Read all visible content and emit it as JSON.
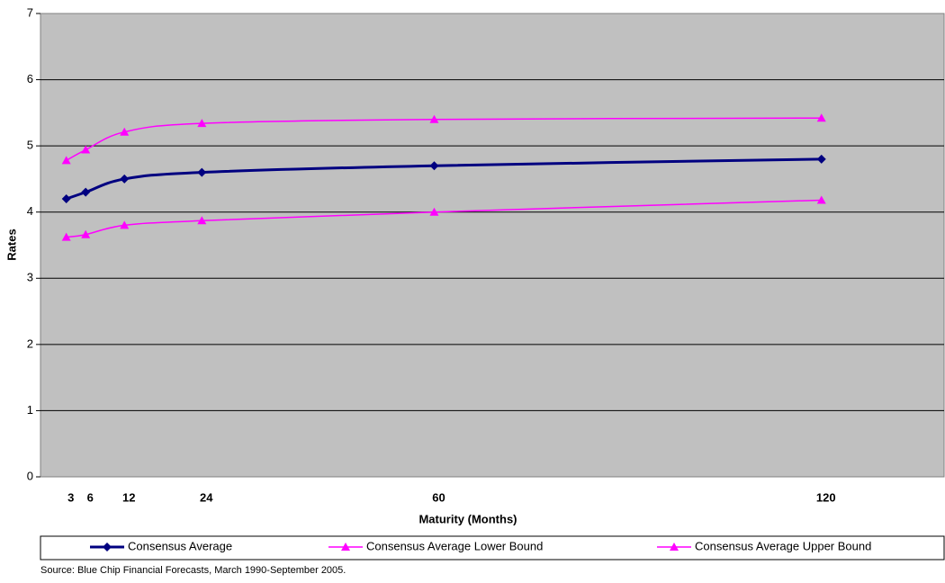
{
  "chart_data": {
    "type": "line",
    "x_label": "Maturity (Months)",
    "y_label": "Rates",
    "x": [
      3,
      6,
      12,
      24,
      60,
      120
    ],
    "series": [
      {
        "name": "Consensus Average",
        "color": "#000080",
        "marker": "diamond",
        "values": [
          4.2,
          4.3,
          4.5,
          4.6,
          4.7,
          4.8
        ]
      },
      {
        "name": "Consensus Average Lower Bound",
        "color": "#ff00ff",
        "marker": "triangle",
        "values": [
          3.62,
          3.66,
          3.8,
          3.87,
          4.0,
          4.18
        ]
      },
      {
        "name": "Consensus Average Upper Bound",
        "color": "#ff00ff",
        "marker": "triangle",
        "values": [
          4.78,
          4.94,
          5.21,
          5.34,
          5.4,
          5.42
        ]
      }
    ],
    "xlim": [
      -1,
      139
    ],
    "xticks": [
      3,
      6,
      12,
      24,
      60,
      120
    ],
    "ylim": [
      0,
      7
    ],
    "yticks": [
      0,
      1,
      2,
      3,
      4,
      5,
      6,
      7
    ],
    "grid": true,
    "smooth": true,
    "legend": "bottom",
    "source": "Source: Blue Chip Financial Forecasts, March 1990-September 2005."
  }
}
